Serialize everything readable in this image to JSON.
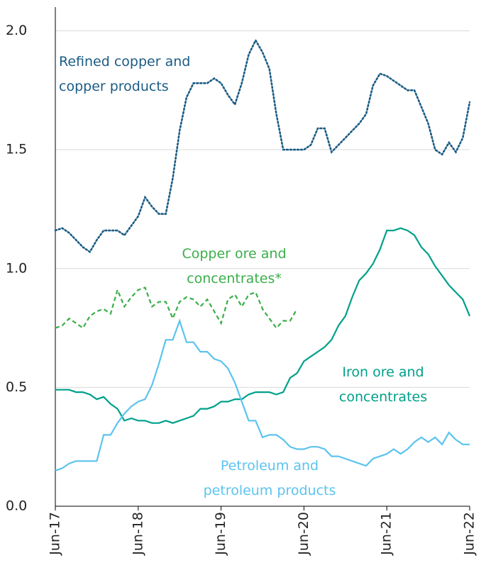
{
  "chart_data": {
    "type": "line",
    "categories": [
      "Jun-17",
      null,
      null,
      null,
      null,
      null,
      null,
      null,
      null,
      null,
      null,
      null,
      "Jun-18",
      null,
      null,
      null,
      null,
      null,
      null,
      null,
      null,
      null,
      null,
      null,
      "Jun-19",
      null,
      null,
      null,
      null,
      null,
      null,
      null,
      null,
      null,
      null,
      null,
      "Jun-20",
      null,
      null,
      null,
      null,
      null,
      null,
      null,
      null,
      null,
      null,
      null,
      "Jun-21",
      null,
      null,
      null,
      null,
      null,
      null,
      null,
      null,
      null,
      null,
      null,
      "Jun-22"
    ],
    "ylim": [
      0,
      2.1
    ],
    "yticks": [
      {
        "value": 0,
        "label": "0.0"
      },
      0.5,
      {
        "value": 1,
        "label": "1.0"
      },
      1.5,
      {
        "value": 2,
        "label": "2.0"
      }
    ],
    "grid": true,
    "series": [
      {
        "name": "Refined copper and copper products",
        "color": "#1b5c85",
        "style": "dotted",
        "values": [
          1.16,
          1.17,
          1.15,
          1.12,
          1.09,
          1.07,
          1.12,
          1.16,
          1.16,
          1.16,
          1.14,
          1.18,
          1.22,
          1.3,
          1.26,
          1.23,
          1.23,
          1.38,
          1.58,
          1.72,
          1.78,
          1.78,
          1.78,
          1.8,
          1.78,
          1.73,
          1.69,
          1.78,
          1.9,
          1.96,
          1.91,
          1.84,
          1.65,
          1.5,
          1.5,
          1.5,
          1.5,
          1.52,
          1.59,
          1.59,
          1.49,
          1.52,
          1.55,
          1.58,
          1.61,
          1.65,
          1.77,
          1.82,
          1.81,
          1.79,
          1.77,
          1.75,
          1.75,
          1.68,
          1.61,
          1.5,
          1.48,
          1.53,
          1.49,
          1.55,
          1.7
        ]
      },
      {
        "name": "Copper ore and concentrates*",
        "color": "#3aae4a",
        "style": "dashed",
        "values": [
          0.75,
          0.76,
          0.79,
          0.77,
          0.75,
          0.8,
          0.82,
          0.83,
          0.81,
          0.91,
          0.84,
          0.88,
          0.91,
          0.92,
          0.84,
          0.86,
          0.86,
          0.79,
          0.86,
          0.88,
          0.87,
          0.84,
          0.87,
          0.82,
          0.77,
          0.87,
          0.89,
          0.84,
          0.89,
          0.9,
          0.83,
          0.79,
          0.75,
          0.78,
          0.78,
          0.83,
          null,
          null,
          null,
          null,
          null,
          null,
          null,
          null,
          null,
          null,
          null,
          null,
          null,
          null,
          null,
          null,
          null,
          null,
          null,
          null,
          null,
          null,
          null,
          null,
          null
        ]
      },
      {
        "name": "Iron ore and concentrates",
        "color": "#00a08a",
        "style": "solid",
        "values": [
          0.49,
          0.49,
          0.49,
          0.48,
          0.48,
          0.47,
          0.45,
          0.46,
          0.43,
          0.41,
          0.36,
          0.37,
          0.36,
          0.36,
          0.35,
          0.35,
          0.36,
          0.35,
          0.36,
          0.37,
          0.38,
          0.41,
          0.41,
          0.42,
          0.44,
          0.44,
          0.45,
          0.45,
          0.47,
          0.48,
          0.48,
          0.48,
          0.47,
          0.48,
          0.54,
          0.56,
          0.61,
          0.63,
          0.65,
          0.67,
          0.7,
          0.76,
          0.8,
          0.88,
          0.95,
          0.98,
          1.02,
          1.08,
          1.16,
          1.16,
          1.17,
          1.16,
          1.14,
          1.09,
          1.06,
          1.01,
          0.97,
          0.93,
          0.9,
          0.87,
          0.8
        ]
      },
      {
        "name": "Petroleum and petroleum products",
        "color": "#5cc3ee",
        "style": "solid",
        "values": [
          0.15,
          0.16,
          0.18,
          0.19,
          0.19,
          0.19,
          0.19,
          0.3,
          0.3,
          0.35,
          0.39,
          0.42,
          0.44,
          0.45,
          0.51,
          0.6,
          0.7,
          0.7,
          0.78,
          0.69,
          0.69,
          0.65,
          0.65,
          0.62,
          0.61,
          0.58,
          0.52,
          0.44,
          0.36,
          0.36,
          0.29,
          0.3,
          0.3,
          0.28,
          0.25,
          0.24,
          0.24,
          0.25,
          0.25,
          0.24,
          0.21,
          0.21,
          0.2,
          0.19,
          0.18,
          0.17,
          0.2,
          0.21,
          0.22,
          0.24,
          0.22,
          0.24,
          0.27,
          0.29,
          0.27,
          0.29,
          0.26,
          0.31,
          0.28,
          0.26,
          0.26
        ]
      }
    ]
  }
}
